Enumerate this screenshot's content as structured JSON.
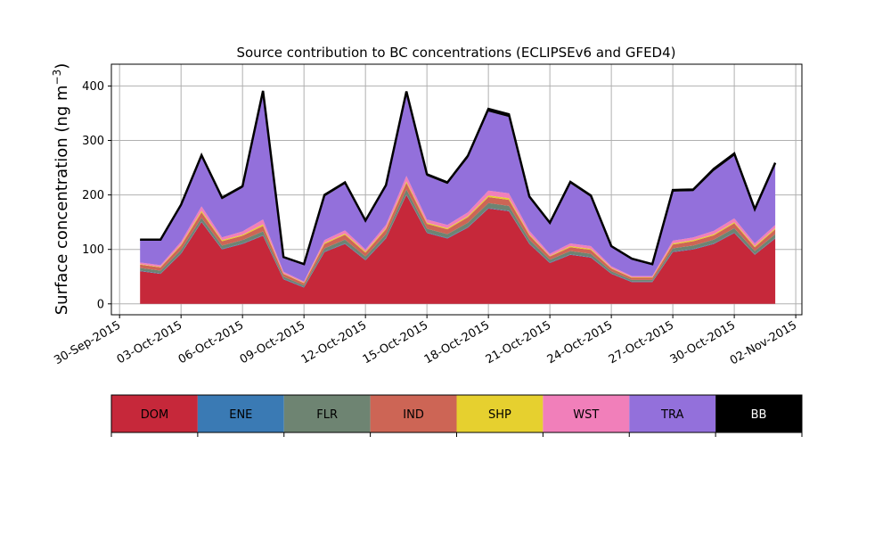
{
  "chart_data": {
    "type": "area",
    "title": "Source contribution to BC concentrations (ECLIPSEv6 and GFED4)",
    "ylabel": "Surface concentration (ng m",
    "ylabel_sup": "−3",
    "ylabel_close": ")",
    "xlabel": "",
    "ylim": [
      -20,
      440
    ],
    "xlim": [
      "2015-09-30",
      "2015-11-02"
    ],
    "yticks": [
      0,
      100,
      200,
      300,
      400
    ],
    "xticks": [
      "30-Sep-2015",
      "03-Oct-2015",
      "06-Oct-2015",
      "09-Oct-2015",
      "12-Oct-2015",
      "15-Oct-2015",
      "18-Oct-2015",
      "21-Oct-2015",
      "24-Oct-2015",
      "27-Oct-2015",
      "30-Oct-2015",
      "02-Nov-2015"
    ],
    "grid": true,
    "stacked": true,
    "x": [
      "2015-10-01",
      "2015-10-02",
      "2015-10-03",
      "2015-10-04",
      "2015-10-05",
      "2015-10-06",
      "2015-10-07",
      "2015-10-08",
      "2015-10-09",
      "2015-10-10",
      "2015-10-11",
      "2015-10-12",
      "2015-10-13",
      "2015-10-14",
      "2015-10-15",
      "2015-10-16",
      "2015-10-17",
      "2015-10-18",
      "2015-10-19",
      "2015-10-20",
      "2015-10-21",
      "2015-10-22",
      "2015-10-23",
      "2015-10-24",
      "2015-10-25",
      "2015-10-26",
      "2015-10-27",
      "2015-10-28",
      "2015-10-29",
      "2015-10-30",
      "2015-10-31",
      "2015-11-01"
    ],
    "series": [
      {
        "name": "DOM",
        "color": "#c6283a",
        "values": [
          60,
          55,
          92,
          150,
          100,
          110,
          125,
          45,
          30,
          95,
          110,
          80,
          120,
          200,
          130,
          120,
          140,
          175,
          170,
          110,
          75,
          90,
          85,
          55,
          40,
          40,
          95,
          100,
          110,
          130,
          90,
          120
        ]
      },
      {
        "name": "ENE",
        "color": "#3a7ab4",
        "values": [
          1,
          1,
          1,
          1,
          1,
          1,
          1,
          1,
          1,
          1,
          1,
          1,
          1,
          1,
          1,
          1,
          1,
          1,
          1,
          1,
          1,
          1,
          1,
          1,
          1,
          1,
          1,
          1,
          1,
          1,
          1,
          1
        ]
      },
      {
        "name": "FLR",
        "color": "#6e8472",
        "values": [
          5,
          5,
          6,
          7,
          6,
          6,
          7,
          4,
          3,
          6,
          7,
          6,
          7,
          9,
          7,
          7,
          8,
          9,
          9,
          7,
          5,
          6,
          6,
          4,
          3,
          3,
          6,
          6,
          7,
          8,
          6,
          7
        ]
      },
      {
        "name": "IND",
        "color": "#cd6555",
        "values": [
          6,
          6,
          8,
          10,
          8,
          8,
          10,
          5,
          4,
          8,
          9,
          7,
          9,
          12,
          9,
          9,
          10,
          11,
          11,
          8,
          6,
          7,
          7,
          5,
          4,
          4,
          7,
          8,
          8,
          9,
          7,
          9
        ]
      },
      {
        "name": "SHP",
        "color": "#e6d02f",
        "values": [
          1,
          1,
          2,
          3,
          2,
          2,
          3,
          1,
          1,
          2,
          2,
          2,
          2,
          3,
          2,
          2,
          2,
          3,
          3,
          2,
          1,
          2,
          2,
          1,
          1,
          1,
          2,
          2,
          2,
          2,
          2,
          2
        ]
      },
      {
        "name": "WST",
        "color": "#f17fba",
        "values": [
          3,
          3,
          5,
          8,
          5,
          6,
          9,
          3,
          2,
          5,
          6,
          4,
          6,
          10,
          6,
          6,
          7,
          9,
          9,
          6,
          4,
          5,
          5,
          3,
          2,
          2,
          5,
          5,
          6,
          7,
          5,
          6
        ]
      },
      {
        "name": "TRA",
        "color": "#9370db",
        "values": [
          40,
          45,
          65,
          90,
          70,
          80,
          230,
          25,
          30,
          80,
          85,
          50,
          70,
          150,
          80,
          75,
          100,
          145,
          140,
          60,
          55,
          110,
          90,
          35,
          30,
          20,
          90,
          85,
          110,
          115,
          60,
          110
        ]
      },
      {
        "name": "BB",
        "color": "#000000",
        "values": [
          2,
          2,
          3,
          4,
          3,
          3,
          6,
          2,
          2,
          3,
          3,
          3,
          3,
          5,
          3,
          3,
          4,
          5,
          5,
          3,
          2,
          3,
          3,
          2,
          2,
          2,
          3,
          3,
          4,
          4,
          3,
          4
        ]
      }
    ]
  },
  "legend": {
    "items": [
      {
        "label": "DOM",
        "color": "#c6283a",
        "text_color": "#000000"
      },
      {
        "label": "ENE",
        "color": "#3a7ab4",
        "text_color": "#000000"
      },
      {
        "label": "FLR",
        "color": "#6e8472",
        "text_color": "#000000"
      },
      {
        "label": "IND",
        "color": "#cd6555",
        "text_color": "#000000"
      },
      {
        "label": "SHP",
        "color": "#e6d02f",
        "text_color": "#000000"
      },
      {
        "label": "WST",
        "color": "#f17fba",
        "text_color": "#000000"
      },
      {
        "label": "TRA",
        "color": "#9370db",
        "text_color": "#000000"
      },
      {
        "label": "BB",
        "color": "#000000",
        "text_color": "#ffffff"
      }
    ]
  }
}
